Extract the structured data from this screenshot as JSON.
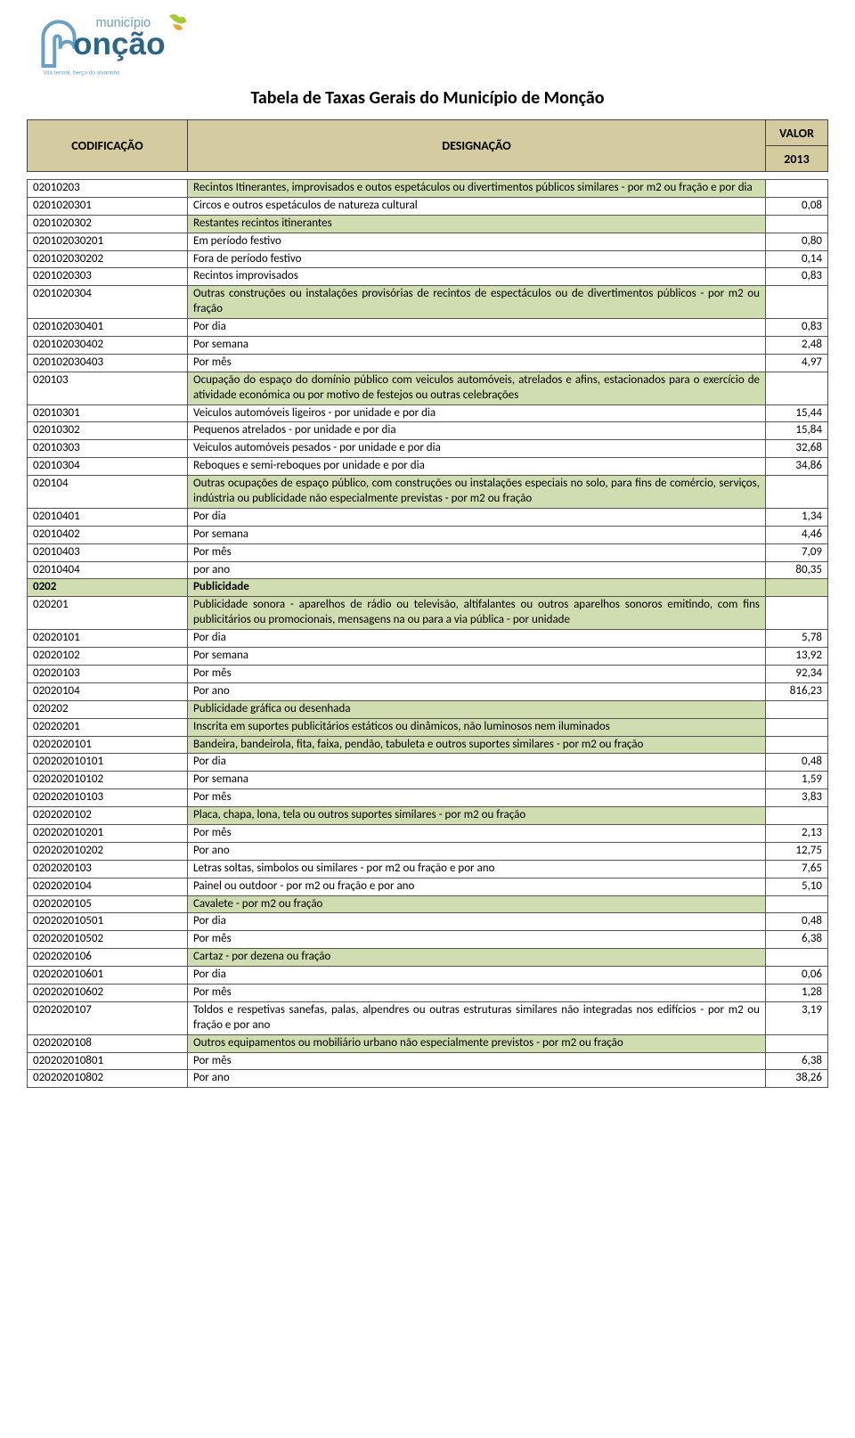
{
  "logo": {
    "top_text": "município",
    "main_text": "onção",
    "tagline": "Vila termal, berço do alvarinho",
    "top_color": "#6aa0c2",
    "main_color": "#2c6586",
    "accent1": "#a8c83a",
    "accent2": "#e6a531"
  },
  "title": "Tabela de Taxas Gerais do Município de Monção",
  "header": {
    "codificacao": "CODIFICAÇÃO",
    "designacao": "DESIGNAÇÃO",
    "valor": "VALOR",
    "year": "2013"
  },
  "colors": {
    "header_bg": "#d4cba0",
    "green_bg": "#d0ddb0",
    "border": "#555555",
    "text": "#000000"
  },
  "rows": [
    {
      "code": "02010203",
      "desc": "Recintos Itinerantes, improvisados e outos espetáculos ou divertimentos públicos similares - por m2 ou fração e por dia",
      "val": "",
      "green": true
    },
    {
      "code": "0201020301",
      "desc": "Circos e outros espetáculos de natureza cultural",
      "val": "0,08"
    },
    {
      "code": "0201020302",
      "desc": "Restantes recintos itinerantes",
      "val": "",
      "green": true
    },
    {
      "code": "020102030201",
      "desc": "Em período festivo",
      "val": "0,80"
    },
    {
      "code": "020102030202",
      "desc": "Fora de período festivo",
      "val": "0,14"
    },
    {
      "code": "0201020303",
      "desc": "Recintos improvisados",
      "val": "0,83"
    },
    {
      "code": "0201020304",
      "desc": "Outras construções ou instalações provisórias de recintos de espectáculos ou de divertimentos públicos - por m2 ou fração",
      "val": "",
      "green": true
    },
    {
      "code": "020102030401",
      "desc": "Por dia",
      "val": "0,83"
    },
    {
      "code": "020102030402",
      "desc": "Por semana",
      "val": "2,48"
    },
    {
      "code": "020102030403",
      "desc": "Por mês",
      "val": "4,97"
    },
    {
      "code": "020103",
      "desc": "Ocupação do espaço do domínio público com veiculos automóveis, atrelados e afins, estacionados para o exercício de atividade económica ou por motivo de festejos ou outras celebrações",
      "val": "",
      "green": true
    },
    {
      "code": "02010301",
      "desc": "Veiculos automóveis ligeiros - por unidade e por dia",
      "val": "15,44"
    },
    {
      "code": "02010302",
      "desc": "Pequenos atrelados - por unidade e por dia",
      "val": "15,84"
    },
    {
      "code": "02010303",
      "desc": "Veiculos automóveis pesados - por unidade e por dia",
      "val": "32,68"
    },
    {
      "code": "02010304",
      "desc": "Reboques e semi-reboques por unidade e por dia",
      "val": "34,86"
    },
    {
      "code": "020104",
      "desc": "Outras ocupações de espaço público, com construções ou instalações especiais no solo, para fins de comércio, serviços, indústria ou publicidade não especialmente previstas - por m2 ou fração",
      "val": "",
      "green": true
    },
    {
      "code": "02010401",
      "desc": "Por dia",
      "val": "1,34"
    },
    {
      "code": "02010402",
      "desc": "Por semana",
      "val": "4,46"
    },
    {
      "code": "02010403",
      "desc": "Por mês",
      "val": "7,09"
    },
    {
      "code": "02010404",
      "desc": "por ano",
      "val": "80,35"
    },
    {
      "code": "0202",
      "desc": "Publicidade",
      "val": "",
      "green": true,
      "bold": true,
      "full": true
    },
    {
      "code": "020201",
      "desc": "Publicidade sonora - aparelhos de rádio ou televisão, altifalantes ou outros aparelhos sonoros emitindo, com fins publicitários ou promocionais, mensagens na ou para a via pública - por unidade",
      "val": "",
      "green": true
    },
    {
      "code": "02020101",
      "desc": "Por dia",
      "val": "5,78"
    },
    {
      "code": "02020102",
      "desc": "Por semana",
      "val": "13,92"
    },
    {
      "code": "02020103",
      "desc": "Por mês",
      "val": "92,34"
    },
    {
      "code": "02020104",
      "desc": "Por ano",
      "val": "816,23"
    },
    {
      "code": "020202",
      "desc": "Publicidade gráfica ou desenhada",
      "val": "",
      "green": true
    },
    {
      "code": "02020201",
      "desc": "Inscrita em suportes publicitários estáticos ou dinâmicos, não luminosos nem iluminados",
      "val": "",
      "green": true
    },
    {
      "code": "0202020101",
      "desc": "Bandeira, bandeirola, fita, faixa, pendão, tabuleta e outros suportes similares - por m2 ou fração",
      "val": "",
      "green": true
    },
    {
      "code": "020202010101",
      "desc": "Por dia",
      "val": "0,48"
    },
    {
      "code": "020202010102",
      "desc": "Por semana",
      "val": "1,59"
    },
    {
      "code": "020202010103",
      "desc": "Por mês",
      "val": "3,83"
    },
    {
      "code": "0202020102",
      "desc": "Placa, chapa, lona, tela ou outros suportes similares - por m2 ou fração",
      "val": "",
      "green": true
    },
    {
      "code": "020202010201",
      "desc": "Por mês",
      "val": "2,13"
    },
    {
      "code": "020202010202",
      "desc": "Por ano",
      "val": "12,75"
    },
    {
      "code": "0202020103",
      "desc": "Letras soltas, simbolos ou similares - por m2 ou fração e por ano",
      "val": "7,65"
    },
    {
      "code": "0202020104",
      "desc": "Painel ou outdoor - por m2 ou fração e por ano",
      "val": "5,10"
    },
    {
      "code": "0202020105",
      "desc": "Cavalete - por m2 ou fração",
      "val": "",
      "green": true
    },
    {
      "code": "020202010501",
      "desc": "Por dia",
      "val": "0,48"
    },
    {
      "code": "020202010502",
      "desc": "Por mês",
      "val": "6,38"
    },
    {
      "code": "0202020106",
      "desc": "Cartaz - por dezena ou fração",
      "val": "",
      "green": true
    },
    {
      "code": "020202010601",
      "desc": "Por dia",
      "val": "0,06"
    },
    {
      "code": "020202010602",
      "desc": "Por mês",
      "val": "1,28"
    },
    {
      "code": "0202020107",
      "desc": "Toldos e respetivas sanefas, palas, alpendres ou outras estruturas similares não integradas nos edifícios - por m2 ou fração e por ano",
      "val": "3,19"
    },
    {
      "code": "0202020108",
      "desc": "Outros equipamentos ou  mobiliário urbano não especialmente previstos - por m2 ou fração",
      "val": "",
      "green": true
    },
    {
      "code": "020202010801",
      "desc": "Por mês",
      "val": "6,38"
    },
    {
      "code": "020202010802",
      "desc": "Por ano",
      "val": "38,26"
    }
  ]
}
